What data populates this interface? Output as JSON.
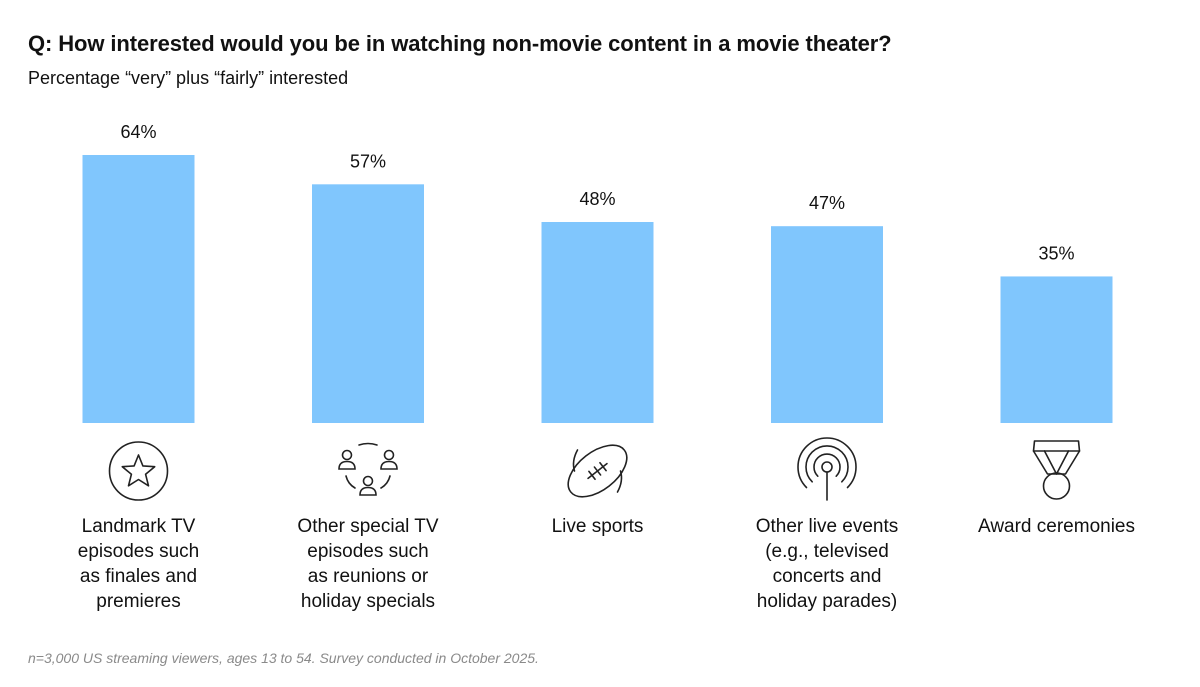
{
  "title": "Q: How interested would you be in watching non-movie content in a movie theater?",
  "subtitle": "Percentage “very” plus “fairly” interested",
  "footnote": "n=3,000 US streaming viewers, ages 13 to 54. Survey conducted in October 2025.",
  "colors": {
    "bar": "#80c6fd",
    "text": "#111111",
    "icon": "#222222",
    "footnote": "#8a8a8a"
  },
  "chart_data": {
    "type": "bar",
    "categories": [
      "Landmark TV episodes such as finales and premieres",
      "Other special TV episodes such as reunions or holiday specials",
      "Live sports",
      "Other live events (e.g., televised concerts and holiday parades)",
      "Award ceremonies"
    ],
    "category_lines": [
      [
        "Landmark TV",
        "episodes such",
        "as finales and",
        "premieres"
      ],
      [
        "Other special TV",
        "episodes such",
        "as reunions or",
        "holiday specials"
      ],
      [
        "Live sports"
      ],
      [
        "Other live events",
        "(e.g., televised",
        "concerts and",
        "holiday parades)"
      ],
      [
        "Award ceremonies"
      ]
    ],
    "values": [
      64,
      57,
      48,
      47,
      35
    ],
    "data_labels": [
      "64%",
      "57%",
      "48%",
      "47%",
      "35%"
    ],
    "icons": [
      "star-icon",
      "people-group-icon",
      "football-icon",
      "broadcast-antenna-icon",
      "medal-icon"
    ],
    "unit": "%",
    "ylim": [
      0,
      64
    ],
    "xlabel": "",
    "ylabel": "",
    "grid": false,
    "legend": "none"
  }
}
